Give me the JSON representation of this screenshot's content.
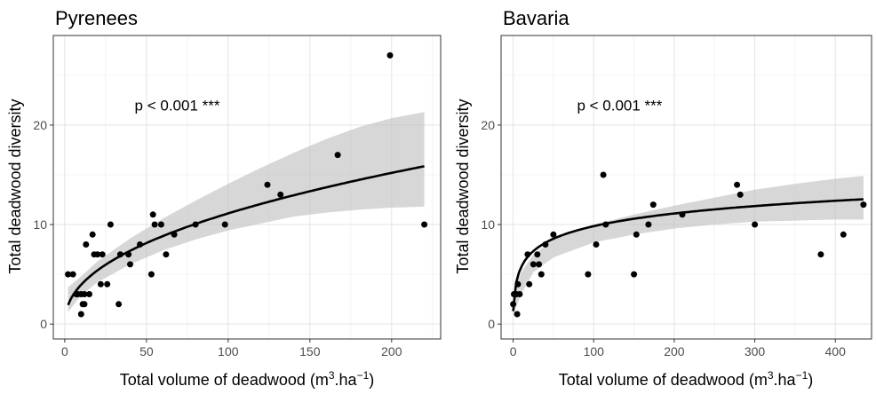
{
  "chart_data": [
    {
      "type": "scatter",
      "title": "Pyrenees",
      "xlabel": "Total volume of deadwood",
      "xlabel_parts": {
        "pre": "Total volume of deadwood (m",
        "sup1": "3",
        "mid": ".ha",
        "sup2": "−1",
        "post": ")"
      },
      "ylabel": "Total deadwood diversity",
      "annotation": "p < 0.001 ***",
      "xlim": [
        -7,
        230
      ],
      "ylim": [
        -1.5,
        29
      ],
      "xticks": [
        0,
        50,
        100,
        150,
        200
      ],
      "yticks": [
        0,
        10,
        20
      ],
      "grid": true,
      "points": [
        [
          2,
          5
        ],
        [
          5,
          5
        ],
        [
          7,
          3
        ],
        [
          8,
          3
        ],
        [
          10,
          1
        ],
        [
          10,
          3
        ],
        [
          11,
          2
        ],
        [
          12,
          3
        ],
        [
          12,
          2
        ],
        [
          13,
          8
        ],
        [
          15,
          3
        ],
        [
          17,
          9
        ],
        [
          18,
          7
        ],
        [
          20,
          7
        ],
        [
          22,
          4
        ],
        [
          23,
          7
        ],
        [
          26,
          4
        ],
        [
          28,
          10
        ],
        [
          33,
          2
        ],
        [
          34,
          7
        ],
        [
          39,
          7
        ],
        [
          40,
          6
        ],
        [
          46,
          8
        ],
        [
          53,
          5
        ],
        [
          54,
          11
        ],
        [
          55,
          10
        ],
        [
          59,
          10
        ],
        [
          62,
          7
        ],
        [
          67,
          9
        ],
        [
          80,
          10
        ],
        [
          98,
          10
        ],
        [
          124,
          14
        ],
        [
          132,
          13
        ],
        [
          167,
          17
        ],
        [
          199,
          27
        ],
        [
          220,
          10
        ]
      ],
      "fit": {
        "type": "power",
        "a": 1.4,
        "b": 0.45,
        "x_from": 2,
        "x_to": 220
      },
      "band_upper": [
        [
          2,
          3.7
        ],
        [
          10,
          4.8
        ],
        [
          20,
          6.3
        ],
        [
          40,
          8.6
        ],
        [
          60,
          10.6
        ],
        [
          80,
          12.4
        ],
        [
          100,
          14.1
        ],
        [
          120,
          15.7
        ],
        [
          140,
          17.2
        ],
        [
          160,
          18.6
        ],
        [
          180,
          19.8
        ],
        [
          200,
          20.7
        ],
        [
          220,
          21.3
        ]
      ],
      "band_lower": [
        [
          2,
          1.2
        ],
        [
          10,
          2.9
        ],
        [
          20,
          4.2
        ],
        [
          40,
          6.0
        ],
        [
          60,
          7.4
        ],
        [
          80,
          8.5
        ],
        [
          100,
          9.4
        ],
        [
          120,
          10.1
        ],
        [
          140,
          10.8
        ],
        [
          160,
          11.2
        ],
        [
          180,
          11.5
        ],
        [
          200,
          11.7
        ],
        [
          220,
          11.8
        ]
      ]
    },
    {
      "type": "scatter",
      "title": "Bavaria",
      "xlabel": "Total volume of deadwood",
      "xlabel_parts": {
        "pre": "Total volume of deadwood (m",
        "sup1": "3",
        "mid": ".ha",
        "sup2": "−1",
        "post": ")"
      },
      "ylabel": "Total deadwood diversity",
      "annotation": "p < 0.001 ***",
      "xlim": [
        -15,
        445
      ],
      "ylim": [
        -1.5,
        29
      ],
      "xticks": [
        0,
        100,
        200,
        300,
        400
      ],
      "yticks": [
        0,
        10,
        20
      ],
      "grid": true,
      "points": [
        [
          0,
          2
        ],
        [
          1,
          3
        ],
        [
          4,
          3
        ],
        [
          5,
          1
        ],
        [
          6,
          4
        ],
        [
          8,
          3
        ],
        [
          18,
          7
        ],
        [
          20,
          4
        ],
        [
          25,
          6
        ],
        [
          30,
          7
        ],
        [
          32,
          6
        ],
        [
          35,
          5
        ],
        [
          40,
          8
        ],
        [
          50,
          9
        ],
        [
          93,
          5
        ],
        [
          103,
          8
        ],
        [
          112,
          15
        ],
        [
          115,
          10
        ],
        [
          150,
          5
        ],
        [
          153,
          9
        ],
        [
          168,
          10
        ],
        [
          174,
          12
        ],
        [
          210,
          11
        ],
        [
          278,
          14
        ],
        [
          282,
          13
        ],
        [
          300,
          10
        ],
        [
          382,
          7
        ],
        [
          410,
          9
        ],
        [
          435,
          12
        ]
      ],
      "fit": {
        "type": "log",
        "a": 1.3,
        "b": 1.85,
        "c": 1,
        "x_from": 0,
        "x_to": 435
      },
      "band_upper": [
        [
          0,
          3.0
        ],
        [
          10,
          5.2
        ],
        [
          25,
          7.0
        ],
        [
          50,
          8.5
        ],
        [
          100,
          10.0
        ],
        [
          150,
          11.0
        ],
        [
          200,
          11.9
        ],
        [
          250,
          12.7
        ],
        [
          300,
          13.5
        ],
        [
          350,
          14.1
        ],
        [
          400,
          14.6
        ],
        [
          435,
          14.9
        ]
      ],
      "band_lower": [
        [
          0,
          0.9
        ],
        [
          10,
          3.0
        ],
        [
          25,
          5.2
        ],
        [
          50,
          6.7
        ],
        [
          100,
          8.2
        ],
        [
          150,
          9.0
        ],
        [
          200,
          9.6
        ],
        [
          250,
          10.0
        ],
        [
          300,
          10.3
        ],
        [
          350,
          10.4
        ],
        [
          400,
          10.5
        ],
        [
          435,
          10.5
        ]
      ]
    }
  ]
}
